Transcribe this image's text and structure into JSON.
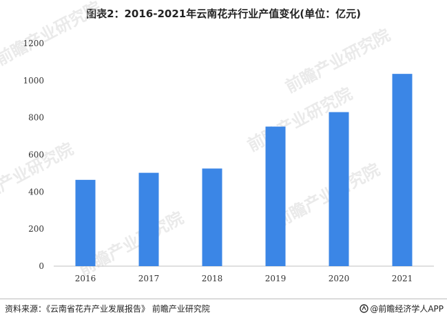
{
  "title": "图表2：2016-2021年云南花卉行业产值变化(单位：亿元)",
  "footer": {
    "source": "资料来源：《云南省花卉产业发展报告》 前瞻产业研究院",
    "brand": "@前瞻经济学人APP"
  },
  "watermark": "前瞻产业研究院",
  "colors": {
    "bar": "#3b86e6",
    "axis": "#bfbfbf",
    "text": "#333333"
  },
  "chart_data": {
    "type": "bar",
    "title": "图表2：2016-2021年云南花卉行业产值变化(单位：亿元)",
    "categories": [
      "2016",
      "2017",
      "2018",
      "2019",
      "2020",
      "2021"
    ],
    "values": [
      465,
      503,
      526,
      752,
      830,
      1036
    ],
    "ylim": [
      0,
      1200
    ],
    "yticks": [
      0,
      200,
      400,
      600,
      800,
      1000,
      1200
    ],
    "xlabel": "",
    "ylabel": "",
    "grid": false,
    "legend": "none"
  }
}
